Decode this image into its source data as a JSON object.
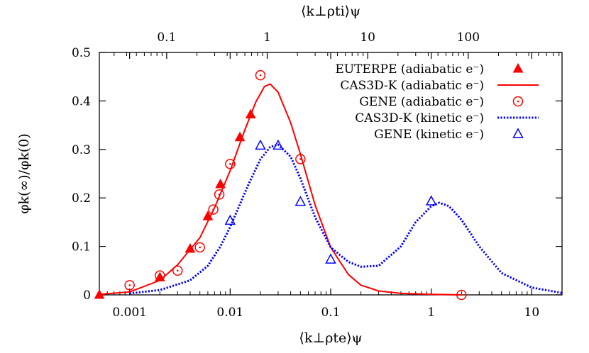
{
  "chart_data": {
    "type": "line",
    "xlabel": "⟨k⊥ρte⟩ψ",
    "x2label": "⟨k⊥ρti⟩ψ",
    "ylabel": "φk(∞)/φk(0)",
    "xscale": "log",
    "xlim": [
      0.0005,
      20
    ],
    "ylim": [
      0,
      0.5
    ],
    "x2lim": [
      0.0214,
      857
    ],
    "x_ticks": [
      {
        "value": 0.001,
        "label": "0.001"
      },
      {
        "value": 0.01,
        "label": "0.01"
      },
      {
        "value": 0.1,
        "label": "0.1"
      },
      {
        "value": 1,
        "label": "1"
      },
      {
        "value": 10,
        "label": "10"
      }
    ],
    "x2_ticks": [
      {
        "value": 0.1,
        "label": "0.1"
      },
      {
        "value": 1,
        "label": "1"
      },
      {
        "value": 10,
        "label": "10"
      },
      {
        "value": 100,
        "label": "100"
      }
    ],
    "y_ticks": [
      {
        "value": 0,
        "label": "0"
      },
      {
        "value": 0.1,
        "label": "0.1"
      },
      {
        "value": 0.2,
        "label": "0.2"
      },
      {
        "value": 0.3,
        "label": "0.3"
      },
      {
        "value": 0.4,
        "label": "0.4"
      },
      {
        "value": 0.5,
        "label": "0.5"
      }
    ],
    "legend_position": "top-right",
    "series": [
      {
        "name": "EUTERPE (adiabatic e⁻)",
        "style": "filled-triangle",
        "color": "#ff0000",
        "points": [
          [
            0.0005,
            0.0
          ],
          [
            0.002,
            0.036
          ],
          [
            0.004,
            0.095
          ],
          [
            0.006,
            0.162
          ],
          [
            0.008,
            0.228
          ],
          [
            0.0125,
            0.325
          ],
          [
            0.016,
            0.372
          ]
        ]
      },
      {
        "name": "CAS3D-K (adiabatic e⁻)",
        "style": "solid-line",
        "color": "#ff0000",
        "points": [
          [
            0.0005,
            0.001
          ],
          [
            0.001,
            0.006
          ],
          [
            0.002,
            0.03
          ],
          [
            0.003,
            0.062
          ],
          [
            0.005,
            0.118
          ],
          [
            0.007,
            0.18
          ],
          [
            0.01,
            0.256
          ],
          [
            0.014,
            0.34
          ],
          [
            0.018,
            0.398
          ],
          [
            0.022,
            0.43
          ],
          [
            0.025,
            0.435
          ],
          [
            0.03,
            0.418
          ],
          [
            0.04,
            0.355
          ],
          [
            0.05,
            0.29
          ],
          [
            0.07,
            0.185
          ],
          [
            0.1,
            0.098
          ],
          [
            0.15,
            0.042
          ],
          [
            0.2,
            0.02
          ],
          [
            0.3,
            0.008
          ],
          [
            0.5,
            0.003
          ],
          [
            1,
            0.001
          ],
          [
            2,
            0.0
          ]
        ]
      },
      {
        "name": "GENE (adiabatic e⁻)",
        "style": "open-circle",
        "color": "#ff0000",
        "points": [
          [
            0.001,
            0.02
          ],
          [
            0.002,
            0.04
          ],
          [
            0.003,
            0.05
          ],
          [
            0.005,
            0.098
          ],
          [
            0.0068,
            0.176
          ],
          [
            0.0078,
            0.207
          ],
          [
            0.01,
            0.27
          ],
          [
            0.02,
            0.453
          ],
          [
            0.05,
            0.28
          ],
          [
            2.0,
            0.0
          ]
        ]
      },
      {
        "name": "CAS3D-K (kinetic e⁻)",
        "style": "dotted-line",
        "color": "#0000ff",
        "points": [
          [
            0.001,
            0.003
          ],
          [
            0.002,
            0.01
          ],
          [
            0.004,
            0.03
          ],
          [
            0.006,
            0.06
          ],
          [
            0.008,
            0.1
          ],
          [
            0.01,
            0.14
          ],
          [
            0.015,
            0.225
          ],
          [
            0.02,
            0.28
          ],
          [
            0.025,
            0.305
          ],
          [
            0.03,
            0.31
          ],
          [
            0.04,
            0.285
          ],
          [
            0.05,
            0.24
          ],
          [
            0.07,
            0.16
          ],
          [
            0.1,
            0.098
          ],
          [
            0.15,
            0.068
          ],
          [
            0.2,
            0.058
          ],
          [
            0.3,
            0.06
          ],
          [
            0.5,
            0.1
          ],
          [
            0.7,
            0.15
          ],
          [
            1.0,
            0.183
          ],
          [
            1.2,
            0.19
          ],
          [
            1.5,
            0.183
          ],
          [
            2.0,
            0.155
          ],
          [
            3.0,
            0.1
          ],
          [
            5.0,
            0.045
          ],
          [
            10,
            0.015
          ],
          [
            20,
            0.004
          ]
        ]
      },
      {
        "name": "GENE (kinetic e⁻)",
        "style": "open-triangle",
        "color": "#0000ff",
        "points": [
          [
            0.01,
            0.153
          ],
          [
            0.02,
            0.308
          ],
          [
            0.03,
            0.308
          ],
          [
            0.05,
            0.192
          ],
          [
            0.1,
            0.073
          ],
          [
            1.0,
            0.193
          ]
        ]
      }
    ]
  }
}
